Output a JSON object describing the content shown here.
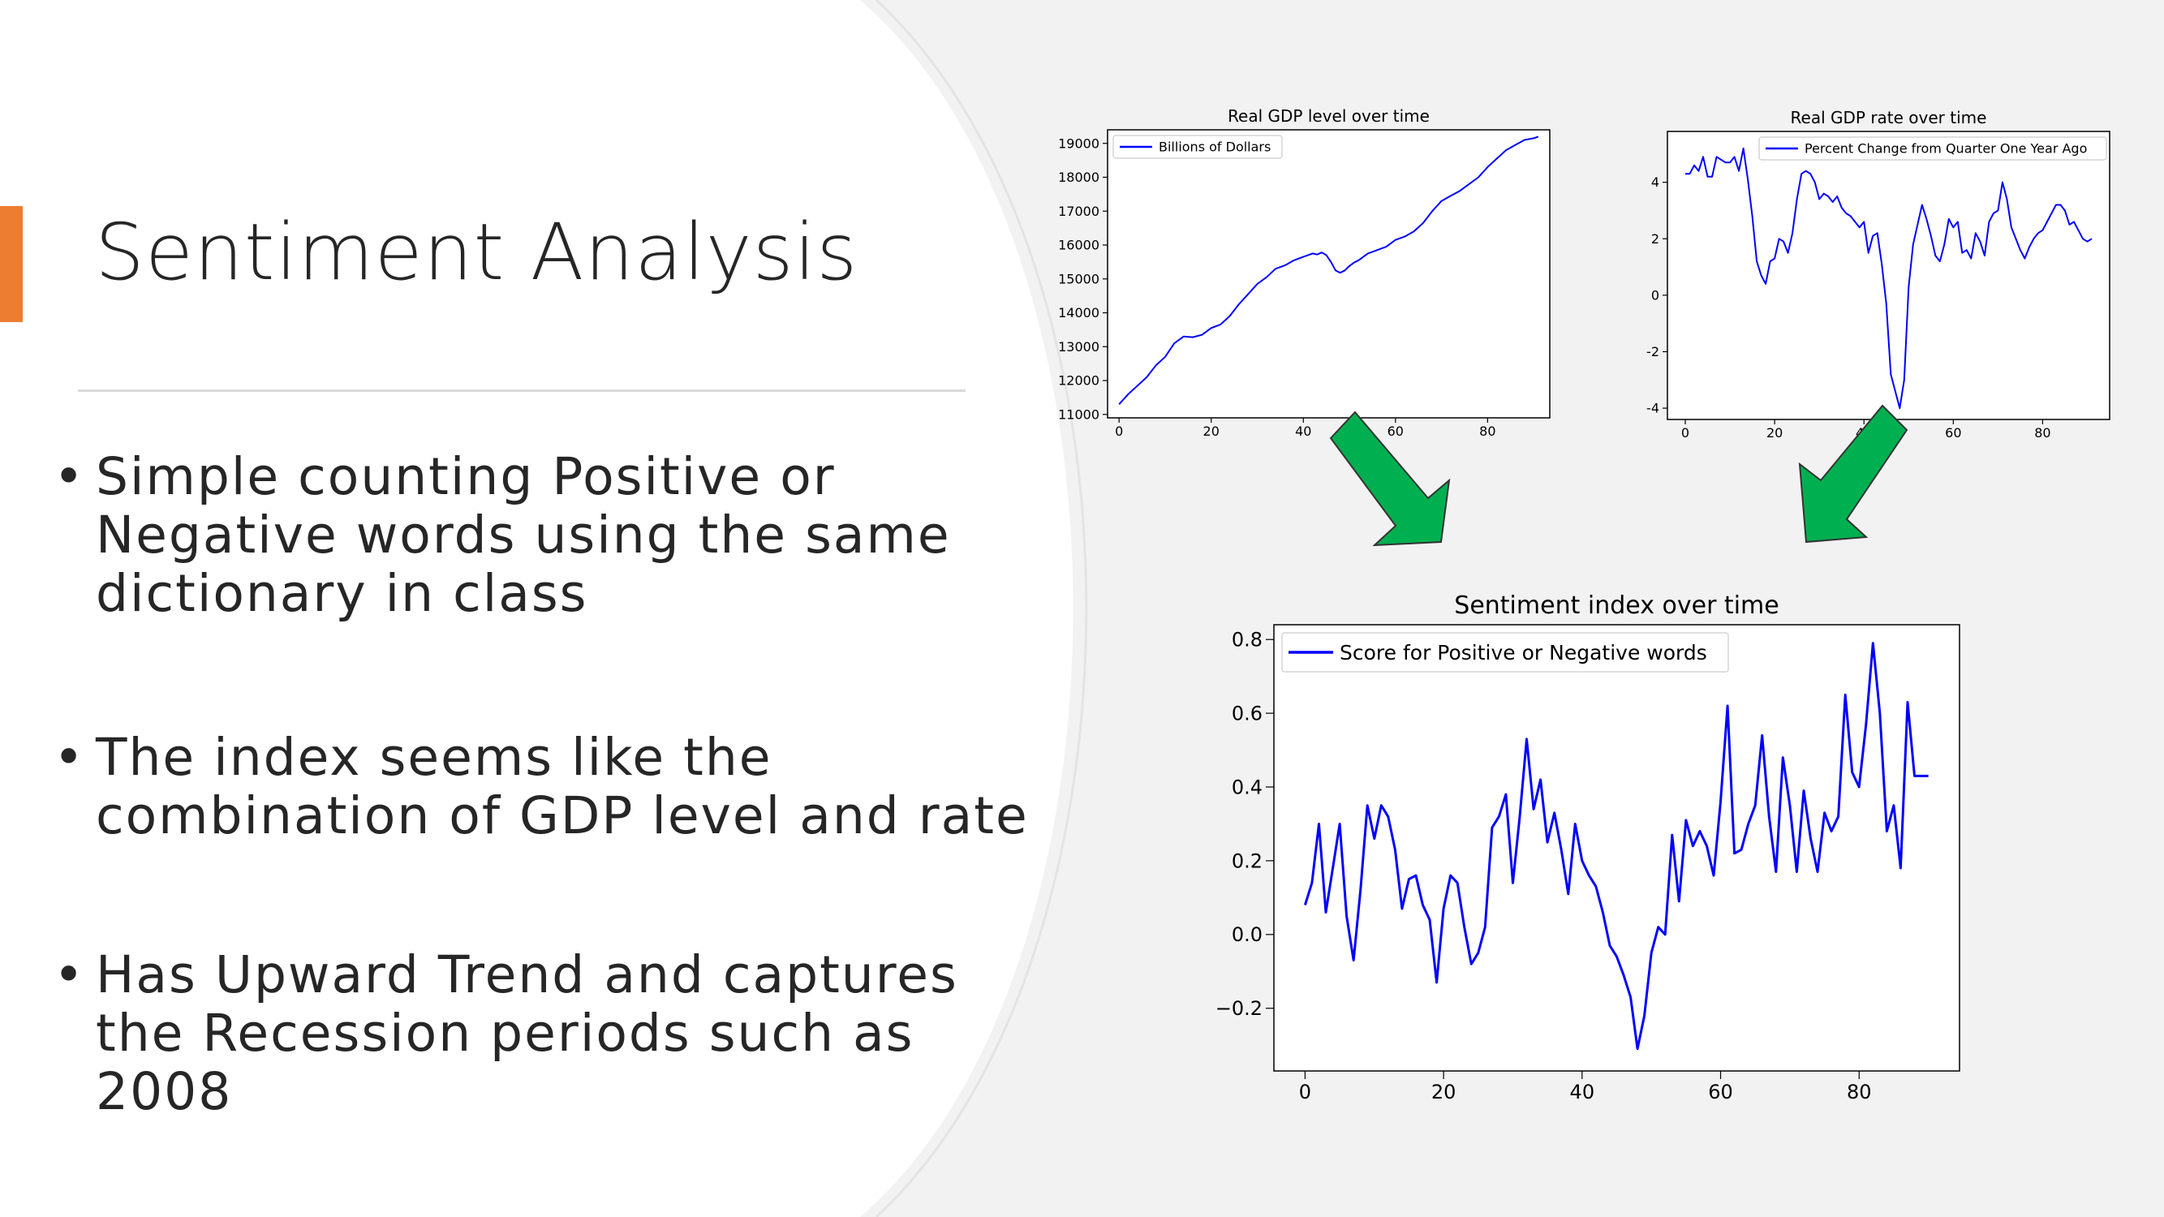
{
  "slide": {
    "title": "Sentiment Analysis",
    "accent_color": "#ed7d31",
    "bullets": [
      "Simple counting Positive or Negative words using the same dictionary in class",
      "The index seems like the combination of GDP level and rate",
      "Has Upward Trend and captures the Recession periods such as 2008"
    ],
    "bullet_marker": "•",
    "arrow_color": "#00b050",
    "line_color": "#0000ff"
  },
  "chart_data": [
    {
      "type": "line",
      "title": "Real GDP level over time",
      "xlabel": "",
      "ylabel": "",
      "xlim": [
        -2.5,
        93.5
      ],
      "ylim": [
        10900,
        19400
      ],
      "xticks": [
        0,
        20,
        40,
        60,
        80
      ],
      "yticks": [
        11000,
        12000,
        13000,
        14000,
        15000,
        16000,
        17000,
        18000,
        19000
      ],
      "legend_position": "upper left",
      "grid": false,
      "series": [
        {
          "name": "Billions of Dollars",
          "x": [
            0,
            2,
            4,
            6,
            8,
            10,
            12,
            14,
            16,
            18,
            20,
            22,
            24,
            26,
            28,
            30,
            32,
            34,
            36,
            38,
            40,
            42,
            43,
            44,
            45,
            46,
            47,
            48,
            49,
            50,
            51,
            52,
            54,
            56,
            58,
            60,
            62,
            64,
            66,
            68,
            70,
            72,
            74,
            76,
            78,
            80,
            82,
            84,
            86,
            88,
            90,
            91
          ],
          "y": [
            11300,
            11600,
            11850,
            12100,
            12450,
            12700,
            13100,
            13300,
            13280,
            13350,
            13550,
            13650,
            13900,
            14250,
            14550,
            14850,
            15050,
            15300,
            15400,
            15550,
            15650,
            15750,
            15720,
            15780,
            15700,
            15500,
            15250,
            15180,
            15250,
            15380,
            15480,
            15550,
            15750,
            15850,
            15950,
            16150,
            16250,
            16400,
            16650,
            17000,
            17300,
            17450,
            17600,
            17800,
            18000,
            18300,
            18550,
            18800,
            18950,
            19100,
            19150,
            19200
          ]
        }
      ]
    },
    {
      "type": "line",
      "title": "Real GDP rate over time",
      "xlabel": "",
      "ylabel": "",
      "xlim": [
        -4,
        95
      ],
      "ylim": [
        -4.4,
        5.8
      ],
      "xticks": [
        0,
        20,
        40,
        60,
        80
      ],
      "yticks": [
        -4,
        -2,
        0,
        2,
        4
      ],
      "legend_position": "upper right",
      "grid": false,
      "series": [
        {
          "name": "Percent Change from Quarter One Year Ago",
          "x": [
            0,
            1,
            2,
            3,
            4,
            5,
            6,
            7,
            8,
            9,
            10,
            11,
            12,
            13,
            14,
            15,
            16,
            17,
            18,
            19,
            20,
            21,
            22,
            23,
            24,
            25,
            26,
            27,
            28,
            29,
            30,
            31,
            32,
            33,
            34,
            35,
            36,
            37,
            38,
            39,
            40,
            41,
            42,
            43,
            44,
            45,
            46,
            47,
            48,
            49,
            50,
            51,
            52,
            53,
            54,
            55,
            56,
            57,
            58,
            59,
            60,
            61,
            62,
            63,
            64,
            65,
            66,
            67,
            68,
            69,
            70,
            71,
            72,
            73,
            74,
            75,
            76,
            77,
            78,
            79,
            80,
            81,
            82,
            83,
            84,
            85,
            86,
            87,
            88,
            89,
            90,
            91
          ],
          "y": [
            4.3,
            4.3,
            4.6,
            4.4,
            4.9,
            4.2,
            4.2,
            4.9,
            4.8,
            4.7,
            4.7,
            4.9,
            4.4,
            5.2,
            4.1,
            2.8,
            1.2,
            0.7,
            0.4,
            1.2,
            1.3,
            2.0,
            1.9,
            1.5,
            2.2,
            3.4,
            4.3,
            4.4,
            4.3,
            4.0,
            3.4,
            3.6,
            3.5,
            3.3,
            3.5,
            3.1,
            2.9,
            2.8,
            2.6,
            2.4,
            2.6,
            1.5,
            2.1,
            2.2,
            1.1,
            -0.3,
            -2.8,
            -3.4,
            -4.0,
            -3.0,
            0.3,
            1.8,
            2.5,
            3.2,
            2.7,
            2.1,
            1.4,
            1.2,
            1.8,
            2.7,
            2.4,
            2.6,
            1.5,
            1.6,
            1.3,
            2.2,
            1.9,
            1.4,
            2.6,
            2.9,
            3.0,
            4.0,
            3.4,
            2.4,
            2.0,
            1.6,
            1.3,
            1.7,
            2.0,
            2.2,
            2.3,
            2.6,
            2.9,
            3.2,
            3.2,
            3.0,
            2.5,
            2.6,
            2.3,
            2.0,
            1.9,
            2.0
          ]
        }
      ]
    },
    {
      "type": "line",
      "title": "Sentiment index over time",
      "xlabel": "",
      "ylabel": "",
      "xlim": [
        -4.5,
        94.5
      ],
      "ylim": [
        -0.37,
        0.84
      ],
      "xticks": [
        0,
        20,
        40,
        60,
        80
      ],
      "ytick_labels": [
        "−0.2",
        "0.0",
        "0.2",
        "0.4",
        "0.6",
        "0.8"
      ],
      "yticks": [
        -0.2,
        0.0,
        0.2,
        0.4,
        0.6,
        0.8
      ],
      "legend_position": "upper left",
      "grid": false,
      "series": [
        {
          "name": "Score for Positive or Negative words",
          "x": [
            0,
            1,
            2,
            3,
            4,
            5,
            6,
            7,
            8,
            9,
            10,
            11,
            12,
            13,
            14,
            15,
            16,
            17,
            18,
            19,
            20,
            21,
            22,
            23,
            24,
            25,
            26,
            27,
            28,
            29,
            30,
            31,
            32,
            33,
            34,
            35,
            36,
            37,
            38,
            39,
            40,
            41,
            42,
            43,
            44,
            45,
            46,
            47,
            48,
            49,
            50,
            51,
            52,
            53,
            54,
            55,
            56,
            57,
            58,
            59,
            60,
            61,
            62,
            63,
            64,
            65,
            66,
            67,
            68,
            69,
            70,
            71,
            72,
            73,
            74,
            75,
            76,
            77,
            78,
            79,
            80,
            81,
            82,
            83,
            84,
            85,
            86,
            87,
            88,
            89,
            90
          ],
          "y": [
            0.08,
            0.14,
            0.3,
            0.06,
            0.18,
            0.3,
            0.05,
            -0.07,
            0.12,
            0.35,
            0.26,
            0.35,
            0.32,
            0.23,
            0.07,
            0.15,
            0.16,
            0.08,
            0.04,
            -0.13,
            0.07,
            0.16,
            0.14,
            0.02,
            -0.08,
            -0.05,
            0.02,
            0.29,
            0.32,
            0.38,
            0.14,
            0.32,
            0.53,
            0.34,
            0.42,
            0.25,
            0.33,
            0.23,
            0.11,
            0.3,
            0.2,
            0.16,
            0.13,
            0.06,
            -0.03,
            -0.06,
            -0.11,
            -0.17,
            -0.31,
            -0.22,
            -0.05,
            0.02,
            0.0,
            0.27,
            0.09,
            0.31,
            0.24,
            0.28,
            0.24,
            0.16,
            0.36,
            0.62,
            0.22,
            0.23,
            0.3,
            0.35,
            0.54,
            0.32,
            0.17,
            0.48,
            0.35,
            0.17,
            0.39,
            0.26,
            0.17,
            0.33,
            0.28,
            0.32,
            0.65,
            0.44,
            0.4,
            0.57,
            0.79,
            0.6,
            0.28,
            0.35,
            0.18,
            0.63,
            0.43,
            0.43,
            0.43
          ]
        }
      ]
    }
  ]
}
